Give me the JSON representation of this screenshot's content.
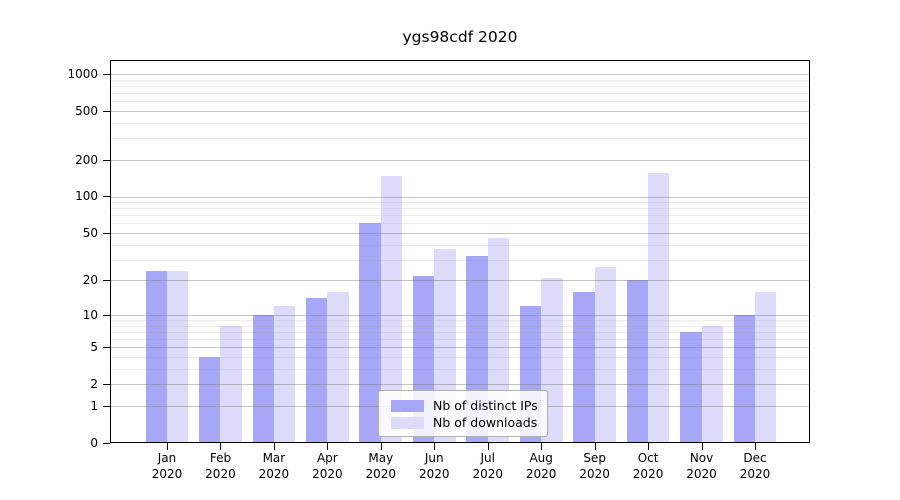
{
  "title": "ygs98cdf 2020",
  "chart_data": {
    "type": "bar",
    "title": "ygs98cdf 2020",
    "categories": [
      "Jan",
      "Feb",
      "Mar",
      "Apr",
      "May",
      "Jun",
      "Jul",
      "Aug",
      "Sep",
      "Oct",
      "Nov",
      "Dec"
    ],
    "x_year_label": "2020",
    "series": [
      {
        "name": "Nb of distinct IPs",
        "color": "#a7a7f7",
        "values": [
          24,
          4,
          10,
          14,
          60,
          22,
          32,
          12,
          16,
          20,
          7,
          10
        ]
      },
      {
        "name": "Nb of downloads",
        "color": "#dcdcfa",
        "values": [
          24,
          8,
          12,
          16,
          148,
          37,
          45,
          21,
          26,
          155,
          8,
          16
        ]
      }
    ],
    "xlabel": "",
    "ylabel": "",
    "yticks": [
      0,
      1,
      2,
      5,
      10,
      20,
      50,
      100,
      200,
      500,
      1000
    ],
    "yscale": "log10(1+v)",
    "ylim": [
      0,
      1300
    ],
    "grid": "major and minor, drawn over bars",
    "legend_position": "lower center inside plot"
  }
}
